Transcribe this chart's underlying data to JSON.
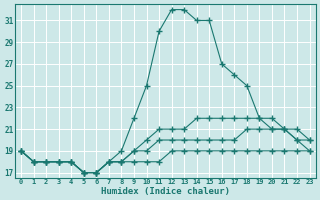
{
  "xlabel": "Humidex (Indice chaleur)",
  "bg_color": "#cde8e8",
  "line_color": "#1a7870",
  "grid_color": "#b8d8d8",
  "xlim": [
    -0.5,
    23.5
  ],
  "ylim": [
    16.5,
    32.5
  ],
  "xticks": [
    0,
    1,
    2,
    3,
    4,
    5,
    6,
    7,
    8,
    9,
    10,
    11,
    12,
    13,
    14,
    15,
    16,
    17,
    18,
    19,
    20,
    21,
    22,
    23
  ],
  "yticks": [
    17,
    19,
    21,
    23,
    25,
    27,
    29,
    31
  ],
  "line1_x": [
    0,
    1,
    2,
    3,
    4,
    5,
    6,
    7,
    8,
    9,
    10,
    11,
    12,
    13,
    14,
    15,
    16,
    17,
    18,
    19,
    20,
    21,
    22,
    23
  ],
  "line1_y": [
    19,
    18,
    18,
    18,
    18,
    17,
    17,
    18,
    19,
    22,
    25,
    30,
    32,
    32,
    31,
    31,
    27,
    26,
    25,
    22,
    21,
    21,
    20,
    19
  ],
  "line2_x": [
    0,
    1,
    2,
    3,
    4,
    5,
    6,
    7,
    8,
    9,
    10,
    11,
    12,
    13,
    14,
    15,
    16,
    17,
    18,
    19,
    20,
    21,
    22,
    23
  ],
  "line2_y": [
    19,
    18,
    18,
    18,
    18,
    17,
    17,
    18,
    18,
    18,
    18,
    18,
    19,
    19,
    19,
    19,
    19,
    19,
    19,
    19,
    19,
    19,
    19,
    19
  ],
  "line3_x": [
    0,
    1,
    2,
    3,
    4,
    5,
    6,
    7,
    8,
    9,
    10,
    11,
    12,
    13,
    14,
    15,
    16,
    17,
    18,
    19,
    20,
    21,
    22,
    23
  ],
  "line3_y": [
    19,
    18,
    18,
    18,
    18,
    17,
    17,
    18,
    18,
    19,
    19,
    20,
    20,
    20,
    20,
    20,
    20,
    20,
    21,
    21,
    21,
    21,
    20,
    20
  ],
  "line4_x": [
    0,
    1,
    2,
    3,
    4,
    5,
    6,
    7,
    8,
    9,
    10,
    11,
    12,
    13,
    14,
    15,
    16,
    17,
    18,
    19,
    20,
    21,
    22,
    23
  ],
  "line4_y": [
    19,
    18,
    18,
    18,
    18,
    17,
    17,
    18,
    18,
    19,
    20,
    21,
    21,
    21,
    22,
    22,
    22,
    22,
    22,
    22,
    22,
    21,
    21,
    20
  ]
}
